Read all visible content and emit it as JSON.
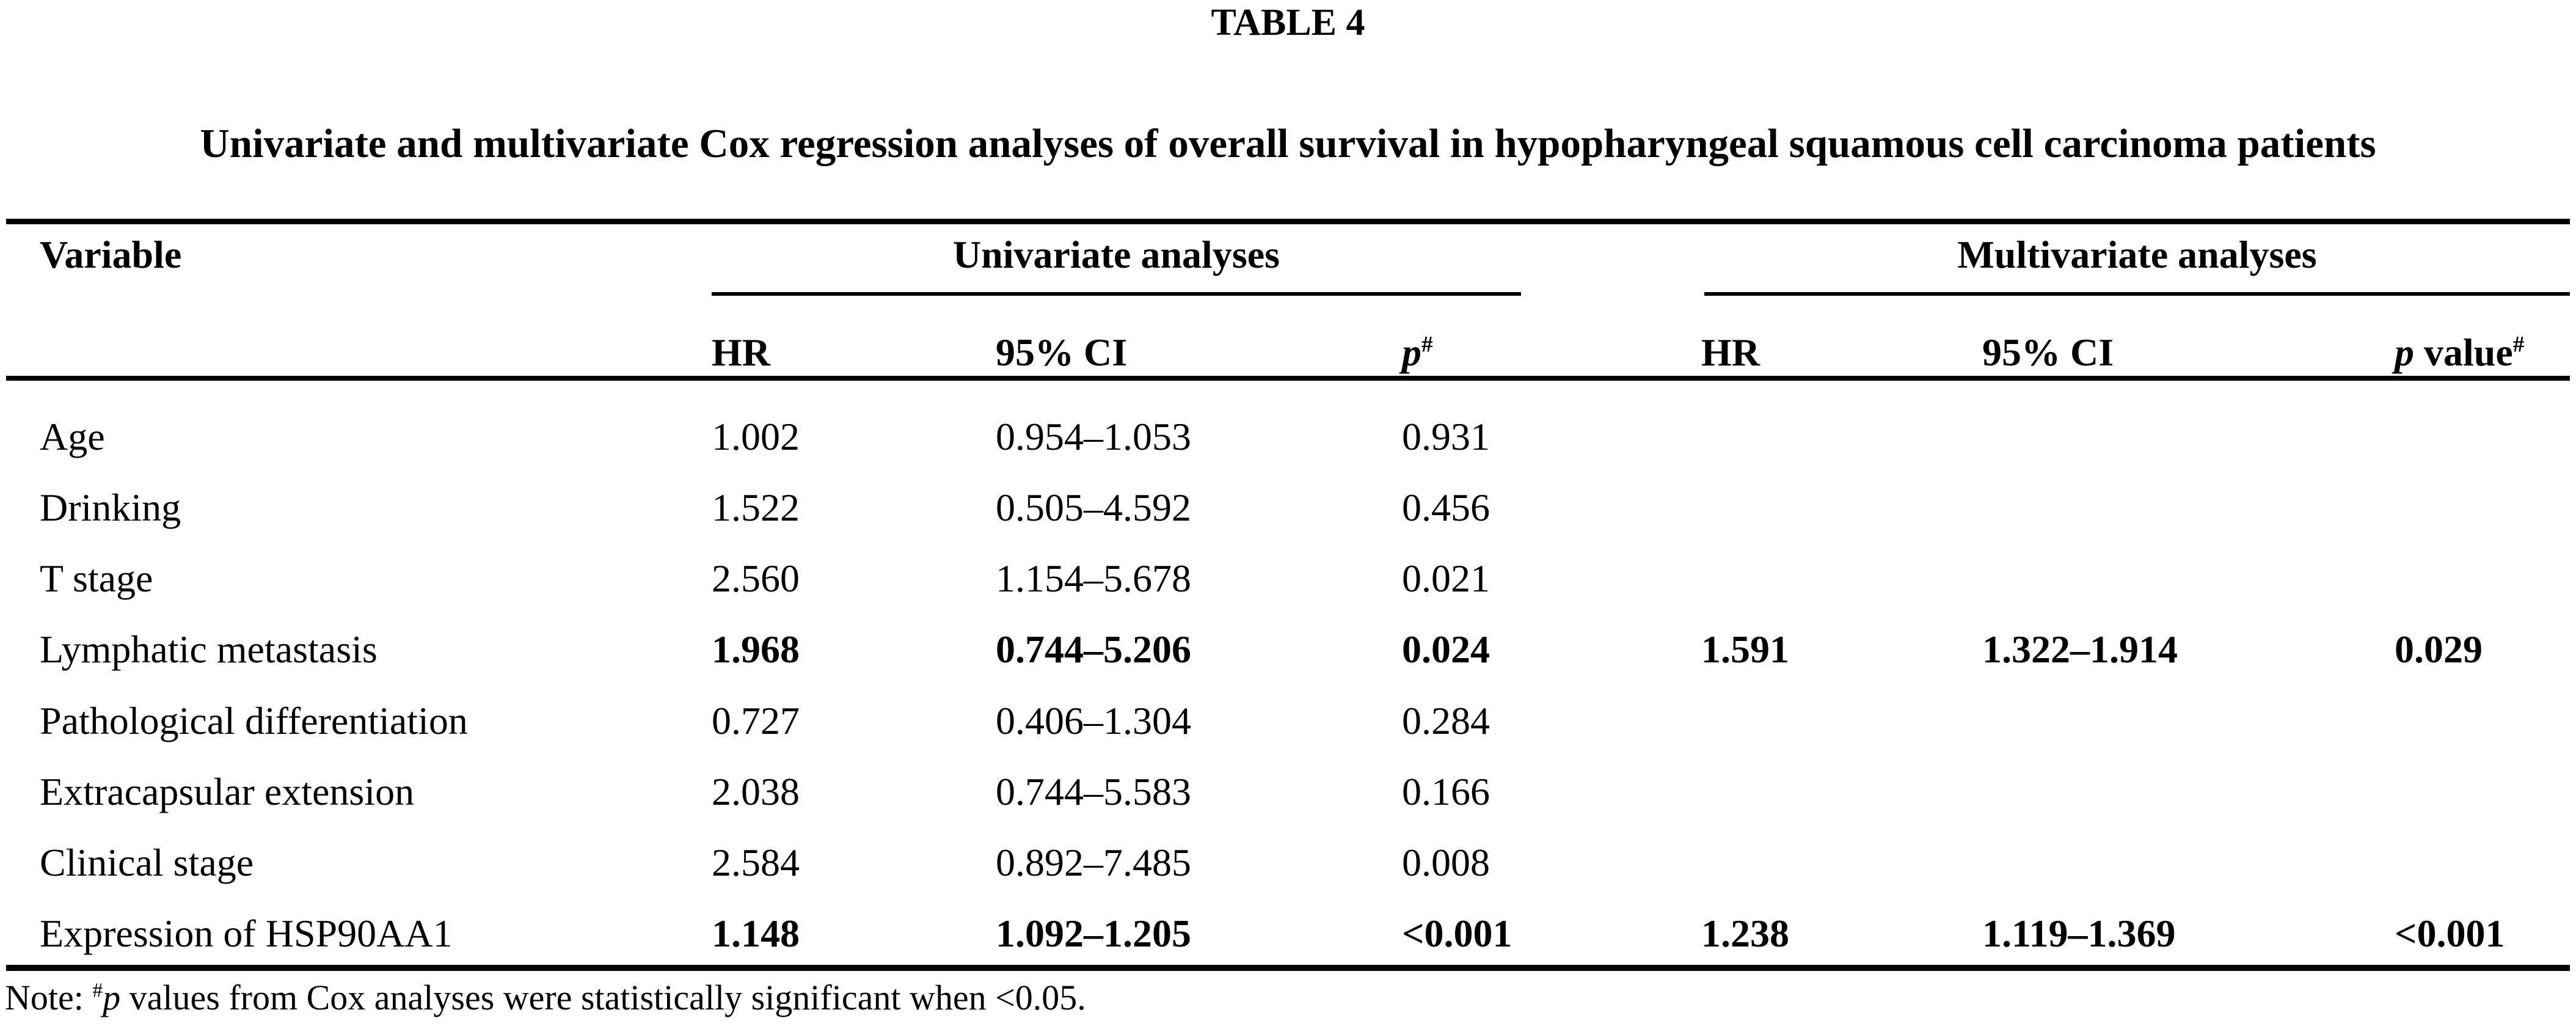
{
  "page": {
    "table_label": "TABLE 4",
    "caption": "Univariate and multivariate Cox regression analyses of overall survival in hypopharyngeal squamous cell carcinoma patients"
  },
  "colors": {
    "text": "#000000",
    "background": "#ffffff",
    "rule": "#000000"
  },
  "header": {
    "variable_col": "Variable",
    "univariate_group": "Univariate analyses",
    "multivariate_group": "Multivariate analyses",
    "uni_hr": "HR",
    "uni_ci": "95% CI",
    "uni_p_label": "p",
    "uni_p_sup": "#",
    "multi_hr": "HR",
    "multi_ci": "95% CI",
    "multi_p_italic": "p",
    "multi_p_rest": " value",
    "multi_p_sup": "#"
  },
  "rows": [
    {
      "variable": "Age",
      "uni_hr": "1.002",
      "uni_ci": "0.954–1.053",
      "uni_p": "0.931",
      "multi_hr": "",
      "multi_ci": "",
      "multi_p": "",
      "bold": false
    },
    {
      "variable": "Drinking",
      "uni_hr": "1.522",
      "uni_ci": "0.505–4.592",
      "uni_p": "0.456",
      "multi_hr": "",
      "multi_ci": "",
      "multi_p": "",
      "bold": false
    },
    {
      "variable": "T stage",
      "uni_hr": "2.560",
      "uni_ci": "1.154–5.678",
      "uni_p": "0.021",
      "multi_hr": "",
      "multi_ci": "",
      "multi_p": "",
      "bold": false
    },
    {
      "variable": "Lymphatic metastasis",
      "uni_hr": "1.968",
      "uni_ci": "0.744–5.206",
      "uni_p": "0.024",
      "multi_hr": "1.591",
      "multi_ci": "1.322–1.914",
      "multi_p": "0.029",
      "bold": true
    },
    {
      "variable": "Pathological differentiation",
      "uni_hr": "0.727",
      "uni_ci": "0.406–1.304",
      "uni_p": "0.284",
      "multi_hr": "",
      "multi_ci": "",
      "multi_p": "",
      "bold": false
    },
    {
      "variable": "Extracapsular extension",
      "uni_hr": "2.038",
      "uni_ci": "0.744–5.583",
      "uni_p": "0.166",
      "multi_hr": "",
      "multi_ci": "",
      "multi_p": "",
      "bold": false
    },
    {
      "variable": "Clinical stage",
      "uni_hr": "2.584",
      "uni_ci": "0.892–7.485",
      "uni_p": "0.008",
      "multi_hr": "",
      "multi_ci": "",
      "multi_p": "",
      "bold": false
    },
    {
      "variable": "Expression of HSP90AA1",
      "uni_hr": "1.148",
      "uni_ci": "1.092–1.205",
      "uni_p": "<0.001",
      "multi_hr": "1.238",
      "multi_ci": "1.119–1.369",
      "multi_p": "<0.001",
      "bold": true
    }
  ],
  "note": {
    "prefix": "Note: ",
    "sup": "#",
    "p_italic": "p",
    "rest": " values from Cox analyses were statistically significant when <0.05."
  }
}
